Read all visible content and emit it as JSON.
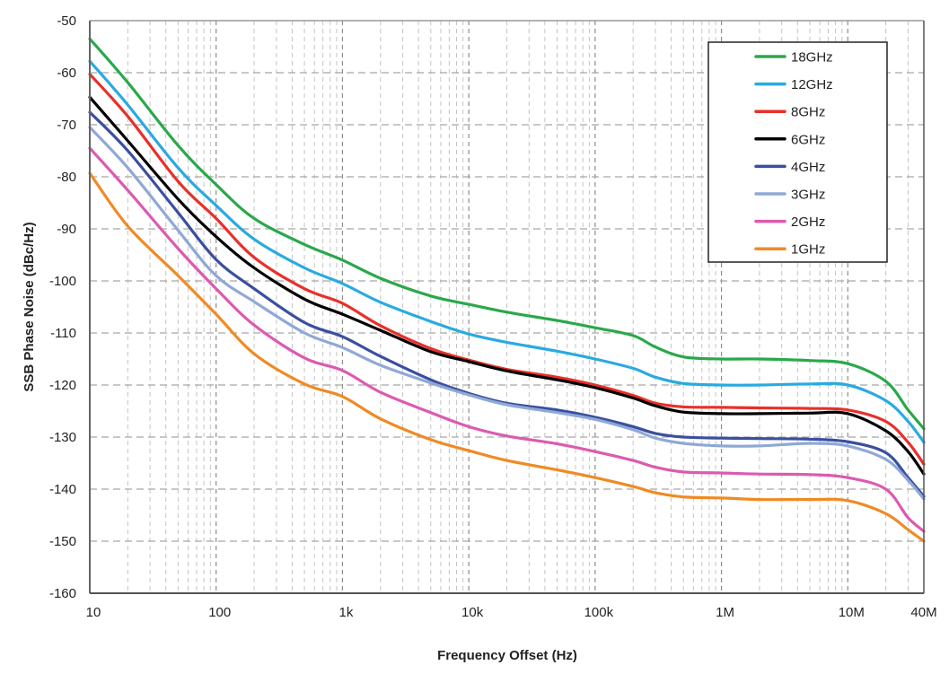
{
  "chart_data": {
    "type": "line",
    "title": "",
    "xlabel": "Frequency Offset (Hz)",
    "ylabel": "SSB Phase Noise (dBc/Hz)",
    "xscale": "log",
    "xlim": [
      10,
      40000000
    ],
    "ylim": [
      -160,
      -50
    ],
    "grid": true,
    "legend_position": "top-right",
    "yticks": [
      {
        "value": -50,
        "label": "-50"
      },
      {
        "value": -60,
        "label": "-60"
      },
      {
        "value": -70,
        "label": "-70"
      },
      {
        "value": -80,
        "label": "-80"
      },
      {
        "value": -90,
        "label": "-90"
      },
      {
        "value": -100,
        "label": "-100"
      },
      {
        "value": -110,
        "label": "-110"
      },
      {
        "value": -120,
        "label": "-120"
      },
      {
        "value": -130,
        "label": "-130"
      },
      {
        "value": -140,
        "label": "-140"
      },
      {
        "value": -150,
        "label": "-150"
      },
      {
        "value": -160,
        "label": "-160"
      }
    ],
    "xticks": [
      {
        "value": 10,
        "label": "10"
      },
      {
        "value": 100,
        "label": "100"
      },
      {
        "value": 1000,
        "label": "1k"
      },
      {
        "value": 10000,
        "label": "10k"
      },
      {
        "value": 100000,
        "label": "100k"
      },
      {
        "value": 1000000,
        "label": "1M"
      },
      {
        "value": 10000000,
        "label": "10M"
      },
      {
        "value": 40000000,
        "label": "40M"
      }
    ],
    "x": [
      10,
      20,
      50,
      100,
      200,
      500,
      1000,
      2000,
      5000,
      10000,
      20000,
      50000,
      100000,
      200000,
      300000,
      500000,
      1000000,
      2000000,
      5000000,
      10000000,
      20000000,
      30000000,
      40000000
    ],
    "series": [
      {
        "name": "18GHz",
        "color": "#2aa84a",
        "values": [
          -53.5,
          -61.9,
          -74.0,
          -81.5,
          -88.0,
          -93.0,
          -96.0,
          -99.5,
          -102.9,
          -104.5,
          -106.0,
          -107.6,
          -109.0,
          -110.5,
          -112.7,
          -114.6,
          -115.0,
          -115.0,
          -115.3,
          -115.9,
          -119.3,
          -124.8,
          -128.4
        ]
      },
      {
        "name": "12GHz",
        "color": "#29aae1",
        "values": [
          -57.8,
          -66.2,
          -78.3,
          -85.5,
          -92.0,
          -97.5,
          -100.5,
          -104.1,
          -107.8,
          -110.2,
          -111.8,
          -113.5,
          -115.0,
          -116.8,
          -118.5,
          -119.7,
          -120.0,
          -120.0,
          -119.8,
          -120.0,
          -123.0,
          -127.0,
          -131.0
        ]
      },
      {
        "name": "8GHz",
        "color": "#e8302a",
        "values": [
          -60.3,
          -68.4,
          -80.9,
          -88.0,
          -95.5,
          -101.5,
          -104.3,
          -108.6,
          -113.0,
          -115.2,
          -117.0,
          -118.5,
          -120.0,
          -122.0,
          -123.5,
          -124.2,
          -124.3,
          -124.4,
          -124.5,
          -124.8,
          -127.0,
          -131.0,
          -135.2
        ]
      },
      {
        "name": "6GHz",
        "color": "#000000",
        "values": [
          -64.7,
          -73.1,
          -84.3,
          -91.5,
          -97.5,
          -103.5,
          -106.4,
          -109.5,
          -113.6,
          -115.5,
          -117.3,
          -119.0,
          -120.5,
          -122.5,
          -124.0,
          -125.2,
          -125.5,
          -125.5,
          -125.4,
          -125.5,
          -128.8,
          -132.8,
          -137.1
        ]
      },
      {
        "name": "4GHz",
        "color": "#3a4fa0",
        "values": [
          -67.6,
          -75.0,
          -86.9,
          -95.9,
          -101.5,
          -108.0,
          -110.7,
          -114.5,
          -119.0,
          -121.6,
          -123.5,
          -124.8,
          -126.2,
          -128.0,
          -129.3,
          -130.0,
          -130.2,
          -130.3,
          -130.4,
          -130.9,
          -133.0,
          -137.8,
          -141.4
        ]
      },
      {
        "name": "3GHz",
        "color": "#8fa8d6",
        "values": [
          -70.5,
          -78.3,
          -90.3,
          -99.0,
          -104.0,
          -110.0,
          -112.8,
          -116.2,
          -119.6,
          -121.9,
          -123.8,
          -125.3,
          -126.6,
          -128.6,
          -130.2,
          -131.2,
          -131.7,
          -131.7,
          -131.2,
          -131.7,
          -134.3,
          -138.3,
          -141.9
        ]
      },
      {
        "name": "2GHz",
        "color": "#dc5ab0",
        "values": [
          -74.5,
          -82.6,
          -93.8,
          -101.5,
          -108.5,
          -114.8,
          -117.2,
          -121.4,
          -125.3,
          -128.0,
          -129.8,
          -131.3,
          -132.8,
          -134.5,
          -135.8,
          -136.7,
          -136.9,
          -137.1,
          -137.2,
          -137.8,
          -140.0,
          -145.5,
          -148.1
        ]
      },
      {
        "name": "1GHz",
        "color": "#f08a24",
        "values": [
          -79.3,
          -89.5,
          -99.0,
          -106.4,
          -114.0,
          -119.8,
          -122.2,
          -126.5,
          -130.5,
          -132.6,
          -134.5,
          -136.3,
          -137.8,
          -139.5,
          -140.7,
          -141.5,
          -141.7,
          -142.0,
          -142.0,
          -142.2,
          -144.7,
          -147.8,
          -150.0
        ]
      }
    ]
  }
}
